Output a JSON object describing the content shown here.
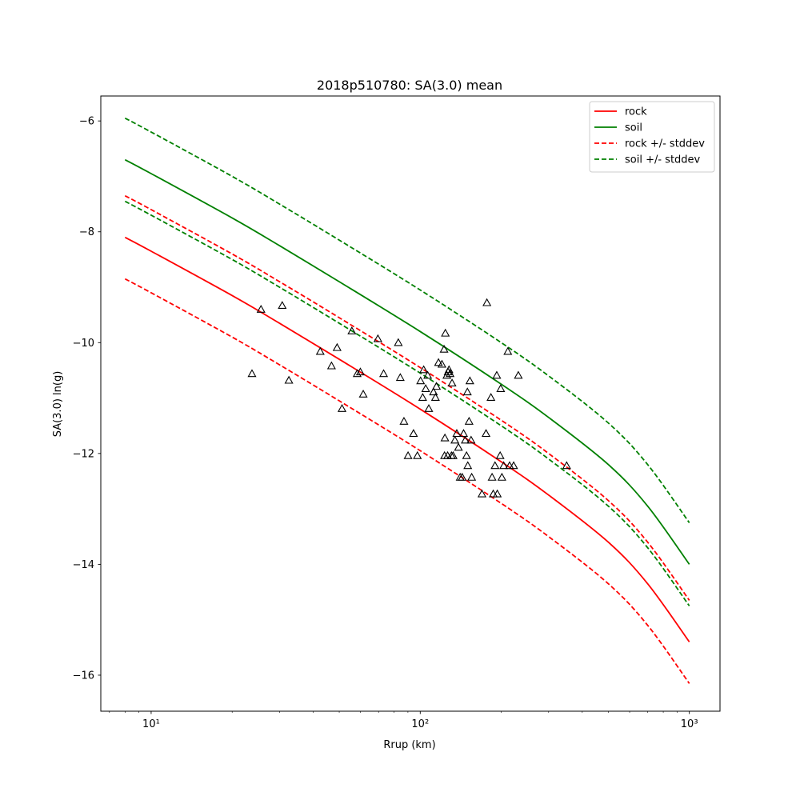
{
  "chart_data": {
    "type": "line",
    "title": "2018p510780: SA(3.0) mean",
    "xlabel": "Rrup (km)",
    "ylabel": "SA(3.0) ln(g)",
    "xscale": "log",
    "xlim": [
      6.5,
      1300
    ],
    "ylim": [
      -16.65,
      -5.55
    ],
    "xticks": [
      {
        "value": 10,
        "label": "10¹"
      },
      {
        "value": 100,
        "label": "10²"
      },
      {
        "value": 1000,
        "label": "10³"
      }
    ],
    "yticks": [
      -16,
      -14,
      -12,
      -10,
      -8,
      -6
    ],
    "legend_position": "top-right",
    "grid": false,
    "series": [
      {
        "name": "rock",
        "color": "#ff0000",
        "dash": "solid",
        "x": [
          8,
          10,
          20,
          30,
          50,
          100,
          200,
          300,
          500,
          700,
          1000
        ],
        "y": [
          -8.1,
          -8.35,
          -9.15,
          -9.65,
          -10.3,
          -11.2,
          -12.15,
          -12.75,
          -13.6,
          -14.35,
          -15.4
        ]
      },
      {
        "name": "soil",
        "color": "#008000",
        "dash": "solid",
        "x": [
          8,
          10,
          20,
          30,
          50,
          100,
          200,
          300,
          500,
          700,
          1000
        ],
        "y": [
          -6.7,
          -6.95,
          -7.75,
          -8.25,
          -8.9,
          -9.8,
          -10.75,
          -11.35,
          -12.2,
          -12.95,
          -14.0
        ]
      },
      {
        "name": "rock +/- stddev",
        "color": "#ff0000",
        "dash": "dashed",
        "x": [
          8,
          10,
          20,
          30,
          50,
          100,
          200,
          300,
          500,
          700,
          1000
        ],
        "y": [
          -7.35,
          -7.6,
          -8.4,
          -8.9,
          -9.55,
          -10.45,
          -11.4,
          -12.0,
          -12.85,
          -13.6,
          -14.65
        ]
      },
      {
        "name": "",
        "color": "#ff0000",
        "dash": "dashed",
        "x": [
          8,
          10,
          20,
          30,
          50,
          100,
          200,
          300,
          500,
          700,
          1000
        ],
        "y": [
          -8.85,
          -9.1,
          -9.9,
          -10.4,
          -11.05,
          -11.95,
          -12.9,
          -13.5,
          -14.35,
          -15.1,
          -16.15
        ]
      },
      {
        "name": "soil +/- stddev",
        "color": "#008000",
        "dash": "dashed",
        "x": [
          8,
          10,
          20,
          30,
          50,
          100,
          200,
          300,
          500,
          700,
          1000
        ],
        "y": [
          -5.95,
          -6.2,
          -7.0,
          -7.5,
          -8.15,
          -9.05,
          -10.0,
          -10.6,
          -11.45,
          -12.2,
          -13.25
        ]
      },
      {
        "name": "",
        "color": "#008000",
        "dash": "dashed",
        "x": [
          8,
          10,
          20,
          30,
          50,
          100,
          200,
          300,
          500,
          700,
          1000
        ],
        "y": [
          -7.45,
          -7.7,
          -8.5,
          -9.0,
          -9.65,
          -10.55,
          -11.5,
          -12.1,
          -12.95,
          -13.7,
          -14.75
        ]
      }
    ],
    "observations": {
      "marker": "triangle-open",
      "color": "#000000",
      "points": [
        [
          23.7,
          -10.56
        ],
        [
          25.6,
          -9.4
        ],
        [
          30.7,
          -9.33
        ],
        [
          32.5,
          -10.68
        ],
        [
          42.5,
          -10.16
        ],
        [
          46.8,
          -10.42
        ],
        [
          49.1,
          -10.09
        ],
        [
          51.2,
          -11.19
        ],
        [
          55.7,
          -9.79
        ],
        [
          58.3,
          -10.56
        ],
        [
          59.9,
          -10.53
        ],
        [
          61.4,
          -10.93
        ],
        [
          69.6,
          -9.93
        ],
        [
          73.1,
          -10.56
        ],
        [
          82.9,
          -10.0
        ],
        [
          84.3,
          -10.63
        ],
        [
          87.0,
          -11.42
        ],
        [
          90.1,
          -12.04
        ],
        [
          94.4,
          -11.64
        ],
        [
          97.6,
          -12.04
        ],
        [
          100.3,
          -10.69
        ],
        [
          102.1,
          -10.99
        ],
        [
          103.0,
          -10.49
        ],
        [
          104.8,
          -10.83
        ],
        [
          106.6,
          -10.59
        ],
        [
          107.6,
          -11.19
        ],
        [
          112.0,
          -10.89
        ],
        [
          113.9,
          -10.99
        ],
        [
          114.9,
          -10.79
        ],
        [
          116.9,
          -10.36
        ],
        [
          120.4,
          -10.39
        ],
        [
          122.6,
          -10.12
        ],
        [
          123.1,
          -12.04
        ],
        [
          123.5,
          -11.72
        ],
        [
          124.0,
          -9.83
        ],
        [
          125.6,
          -10.59
        ],
        [
          126.4,
          -12.04
        ],
        [
          126.9,
          -10.53
        ],
        [
          127.9,
          -10.49
        ],
        [
          129.1,
          -10.56
        ],
        [
          130.6,
          -12.04
        ],
        [
          131.3,
          -10.73
        ],
        [
          132.5,
          -12.04
        ],
        [
          134.5,
          -11.76
        ],
        [
          136.7,
          -11.64
        ],
        [
          138.7,
          -11.89
        ],
        [
          140.7,
          -12.43
        ],
        [
          143.2,
          -12.43
        ],
        [
          144.9,
          -11.64
        ],
        [
          147.0,
          -11.76
        ],
        [
          148.6,
          -12.04
        ],
        [
          149.7,
          -10.89
        ],
        [
          150.2,
          -12.22
        ],
        [
          151.9,
          -11.42
        ],
        [
          152.9,
          -10.69
        ],
        [
          154.5,
          -11.76
        ],
        [
          155.3,
          -12.43
        ],
        [
          169.6,
          -12.73
        ],
        [
          175.6,
          -11.64
        ],
        [
          176.9,
          -9.28
        ],
        [
          183.1,
          -10.99
        ],
        [
          184.9,
          -12.43
        ],
        [
          186.8,
          -12.73
        ],
        [
          189.6,
          -12.22
        ],
        [
          192.5,
          -10.59
        ],
        [
          193.4,
          -12.73
        ],
        [
          198.1,
          -12.04
        ],
        [
          199.1,
          -10.83
        ],
        [
          201.1,
          -12.43
        ],
        [
          204.2,
          -12.22
        ],
        [
          211.6,
          -10.16
        ],
        [
          214.8,
          -12.22
        ],
        [
          222.4,
          -12.22
        ],
        [
          231.5,
          -10.59
        ],
        [
          350.0,
          -12.22
        ]
      ]
    }
  }
}
